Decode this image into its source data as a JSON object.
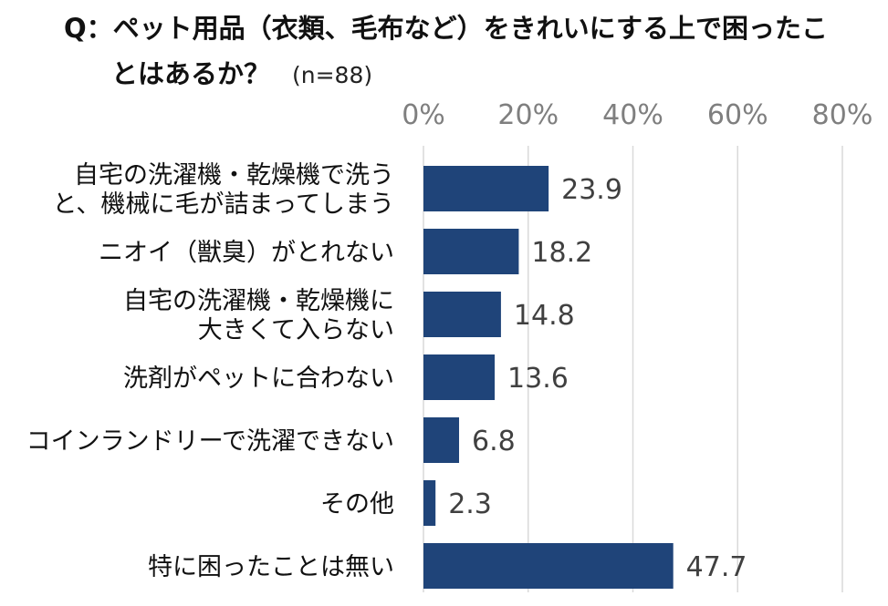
{
  "title": {
    "line1": "Q：ペット用品（衣類、毛布など）をきれいにする上で困ったこ",
    "line2": "とはあるか？",
    "n": "(n=88)"
  },
  "chart_data": {
    "type": "bar",
    "orientation": "horizontal",
    "title": "Q：ペット用品（衣類、毛布など）をきれいにする上で困ったことはあるか？",
    "subtitle": "(n=88)",
    "categories": [
      [
        "自宅の洗濯機・乾燥機で洗う",
        "と、機械に毛が詰まってしまう"
      ],
      [
        "ニオイ（獣臭）がとれない"
      ],
      [
        "自宅の洗濯機・乾燥機に",
        "大きくて入らない"
      ],
      [
        "洗剤がペットに合わない"
      ],
      [
        "コインランドリーで洗濯できない"
      ],
      [
        "その他"
      ],
      [
        "特に困ったことは無い"
      ]
    ],
    "values": [
      23.9,
      18.2,
      14.8,
      13.6,
      6.8,
      2.3,
      47.7
    ],
    "value_labels": [
      "23.9",
      "18.2",
      "14.8",
      "13.6",
      "6.8",
      "2.3",
      "47.7"
    ],
    "x_ticks": [
      "0%",
      "20%",
      "40%",
      "60%",
      "80%"
    ],
    "x_tick_values": [
      0,
      20,
      40,
      60,
      80
    ],
    "xlim": [
      0,
      80
    ],
    "axis_position": "top",
    "grid": true,
    "bar_color": "#1f4479"
  }
}
